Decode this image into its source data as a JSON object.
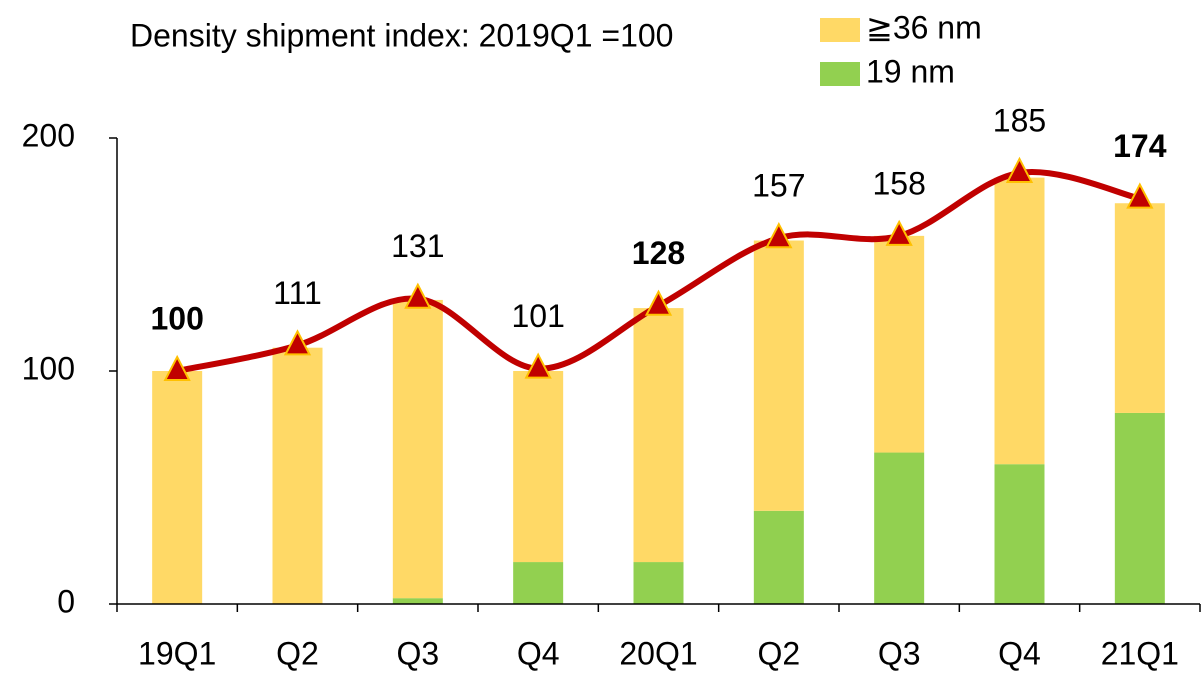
{
  "chart_data": {
    "type": "bar_line",
    "title": "Density shipment index:  2019Q1 =100",
    "categories": [
      "19Q1",
      "Q2",
      "Q3",
      "Q4",
      "20Q1",
      "Q2",
      "Q3",
      "Q4",
      "21Q1"
    ],
    "series": [
      {
        "name": "19 nm",
        "color": "#92d050",
        "values": [
          0,
          0,
          2.5,
          18,
          18,
          40,
          65,
          60,
          82
        ]
      },
      {
        "name": "≧36 nm",
        "color": "#ffd966",
        "values": [
          100,
          110,
          128,
          82,
          109,
          116,
          93,
          123,
          90
        ]
      }
    ],
    "line": {
      "color": "#c00000",
      "marker_edge": "#ffc000",
      "values": [
        100,
        111,
        131,
        101,
        128,
        157,
        158,
        185,
        174
      ],
      "label_colors": [
        "#0000ff",
        "#000000",
        "#000000",
        "#000000",
        "#0000ff",
        "#000000",
        "#000000",
        "#000000",
        "#0000ff"
      ],
      "label_bold": [
        true,
        false,
        false,
        false,
        true,
        false,
        false,
        false,
        true
      ]
    },
    "ylim": [
      0,
      200
    ],
    "yticks": [
      0,
      100,
      200
    ]
  }
}
